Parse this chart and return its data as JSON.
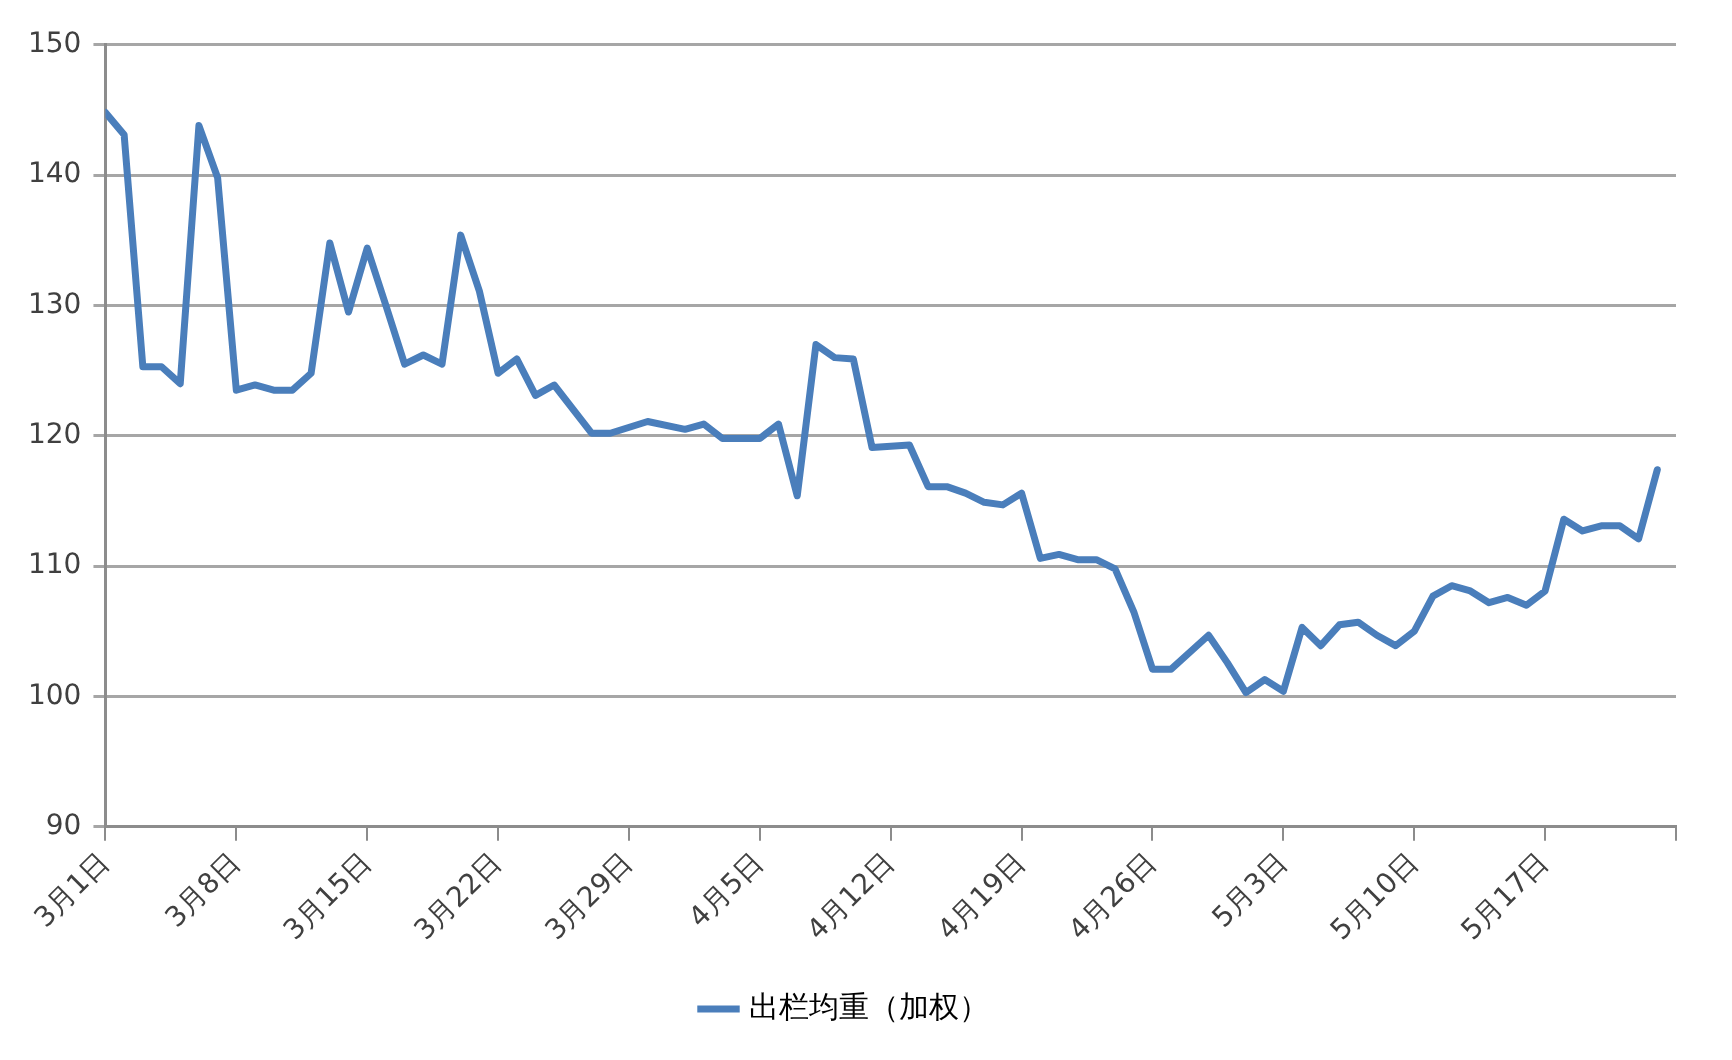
{
  "chart_data": {
    "type": "line",
    "x": [
      "--03-01",
      "--03-02",
      "--03-03",
      "--03-04",
      "--03-05",
      "--03-06",
      "--03-07",
      "--03-08",
      "--03-09",
      "--03-10",
      "--03-11",
      "--03-12",
      "--03-13",
      "--03-14",
      "--03-15",
      "--03-16",
      "--03-17",
      "--03-18",
      "--03-19",
      "--03-20",
      "--03-21",
      "--03-22",
      "--03-23",
      "--03-24",
      "--03-25",
      "--03-27",
      "--03-28",
      "--03-30",
      "--04-01",
      "--04-02",
      "--04-03",
      "--04-05",
      "--04-06",
      "--04-07",
      "--04-08",
      "--04-09",
      "--04-10",
      "--04-11",
      "--04-13",
      "--04-14",
      "--04-15",
      "--04-16",
      "--04-17",
      "--04-18",
      "--04-19",
      "--04-20",
      "--04-21",
      "--04-22",
      "--04-23",
      "--04-24",
      "--04-25",
      "--04-26",
      "--04-27",
      "--04-29",
      "--04-30",
      "--05-01",
      "--05-02",
      "--05-03",
      "--05-04",
      "--05-05",
      "--05-06",
      "--05-07",
      "--05-08",
      "--05-09",
      "--05-10",
      "--05-11",
      "--05-12",
      "--05-13",
      "--05-14",
      "--05-15",
      "--05-16",
      "--05-17",
      "--05-18",
      "--05-19",
      "--05-20",
      "--05-21",
      "--05-22",
      "--05-23"
    ],
    "series": [
      {
        "name": "出栏均重（加权）",
        "color": "#4a7ebb",
        "values": [
          144.8,
          143.1,
          125.3,
          125.3,
          124.0,
          143.8,
          139.8,
          123.5,
          123.9,
          123.5,
          123.5,
          124.8,
          134.8,
          129.5,
          134.4,
          130.0,
          125.5,
          126.2,
          125.5,
          135.4,
          131.1,
          124.8,
          125.9,
          123.1,
          123.9,
          120.2,
          120.2,
          121.1,
          120.5,
          120.9,
          119.8,
          119.8,
          120.9,
          115.4,
          127.0,
          126.0,
          125.9,
          119.1,
          119.3,
          116.1,
          116.1,
          115.6,
          114.9,
          114.7,
          115.6,
          110.6,
          110.9,
          110.5,
          110.5,
          109.8,
          106.5,
          102.1,
          102.1,
          104.7,
          102.6,
          100.3,
          101.3,
          100.4,
          105.3,
          103.9,
          105.5,
          105.7,
          104.7,
          103.9,
          105.0,
          107.7,
          108.5,
          108.1,
          107.2,
          107.6,
          107.0,
          108.1,
          113.6,
          112.7,
          113.1,
          113.1,
          112.1,
          117.4
        ]
      }
    ],
    "xlim": [
      "--03-01",
      "--05-24"
    ],
    "xticks": [
      {
        "value": "--03-01",
        "label": "3月1日"
      },
      {
        "value": "--03-08",
        "label": "3月8日"
      },
      {
        "value": "--03-15",
        "label": "3月15日"
      },
      {
        "value": "--03-22",
        "label": "3月22日"
      },
      {
        "value": "--03-29",
        "label": "3月29日"
      },
      {
        "value": "--04-05",
        "label": "4月5日"
      },
      {
        "value": "--04-12",
        "label": "4月12日"
      },
      {
        "value": "--04-19",
        "label": "4月19日"
      },
      {
        "value": "--04-26",
        "label": "4月26日"
      },
      {
        "value": "--05-03",
        "label": "5月3日"
      },
      {
        "value": "--05-10",
        "label": "5月10日"
      },
      {
        "value": "--05-17",
        "label": "5月17日"
      },
      {
        "value": "--05-24",
        "label": null
      }
    ],
    "ylim": [
      90,
      150
    ],
    "yticks": [
      90,
      100,
      110,
      120,
      130,
      140,
      150
    ],
    "grid": "y",
    "legend": "bottom",
    "marker": "none",
    "line_style": "solid"
  }
}
